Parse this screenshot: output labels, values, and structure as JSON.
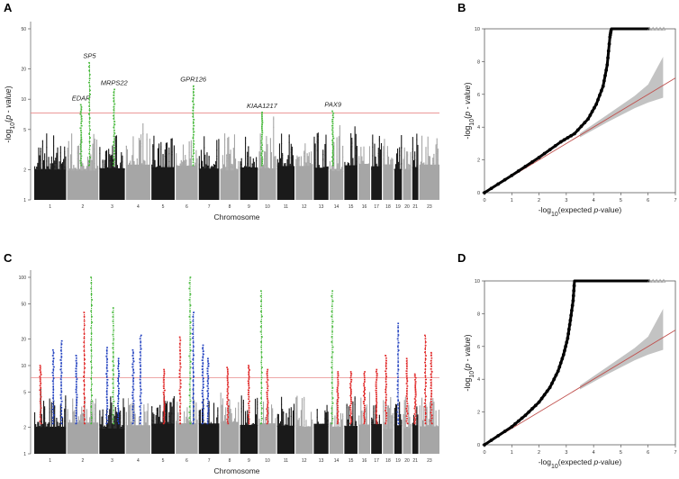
{
  "chart_data": [
    {
      "panel": "A",
      "type": "scatter",
      "subtype": "manhattan",
      "ylabel_tex": [
        "-log",
        "10",
        "(",
        "p",
        " - ",
        "value",
        ")"
      ],
      "xlabel": "Chromosome",
      "y_scale": "log",
      "ylim": [
        1,
        50
      ],
      "yticks": [
        1,
        2,
        5,
        10,
        20,
        50
      ],
      "chromosome_ticks": [
        "1",
        "2",
        "3",
        "4",
        "5",
        "6",
        "7",
        "8",
        "9",
        "10",
        "11",
        "12",
        "13",
        "14",
        "15",
        "16",
        "17",
        "18",
        "19",
        "20",
        "21",
        "23"
      ],
      "chromosome_sizes": [
        248,
        242,
        198,
        190,
        181,
        171,
        159,
        145,
        138,
        134,
        135,
        133,
        114,
        107,
        102,
        90,
        83,
        80,
        59,
        64,
        47,
        156
      ],
      "significance_threshold": 7.3,
      "hits": [
        {
          "gene": "EDAR",
          "chr": 2,
          "pos": 0.45,
          "peak": 8.8
        },
        {
          "gene": "SP5",
          "chr": 2,
          "pos": 0.72,
          "peak": 23
        },
        {
          "gene": "MRPS22",
          "chr": 3,
          "pos": 0.58,
          "peak": 12.5
        },
        {
          "gene": "GPR126",
          "chr": 6,
          "pos": 0.8,
          "peak": 13.5
        },
        {
          "gene": "KIAA1217",
          "chr": 10,
          "pos": 0.18,
          "peak": 7.4
        },
        {
          "gene": "PAX9",
          "chr": 14,
          "pos": 0.25,
          "peak": 7.6
        }
      ]
    },
    {
      "panel": "B",
      "type": "scatter",
      "subtype": "qq",
      "ylabel_tex": [
        "-log",
        "10",
        "(",
        "p",
        " - ",
        "value",
        ")"
      ],
      "xlabel_tex": [
        "-log",
        "10",
        "(expected ",
        "p",
        "-value)"
      ],
      "xlim": [
        0,
        7
      ],
      "ylim": [
        0,
        10
      ],
      "xticks": [
        0,
        1,
        2,
        3,
        4,
        5,
        6,
        7
      ],
      "yticks": [
        0,
        2,
        4,
        6,
        8,
        10
      ],
      "observed_curve": [
        [
          0,
          0
        ],
        [
          1,
          1.05
        ],
        [
          2,
          2.15
        ],
        [
          2.8,
          3.1
        ],
        [
          3.3,
          3.6
        ],
        [
          3.8,
          4.5
        ],
        [
          4.1,
          5.4
        ],
        [
          4.35,
          6.5
        ],
        [
          4.5,
          7.8
        ],
        [
          4.6,
          9.5
        ],
        [
          4.65,
          10
        ]
      ],
      "capped_points_x": [
        4.65,
        6.55
      ],
      "capped_value": 10,
      "expected_line": [
        [
          0,
          0
        ],
        [
          7,
          7
        ]
      ],
      "confidence_band_upper": [
        [
          3.5,
          3.62
        ],
        [
          4.5,
          4.75
        ],
        [
          5.5,
          5.9
        ],
        [
          6,
          6.6
        ],
        [
          6.55,
          8.3
        ]
      ],
      "confidence_band_lower": [
        [
          3.5,
          3.38
        ],
        [
          4.5,
          4.3
        ],
        [
          5.5,
          5.15
        ],
        [
          6,
          5.5
        ],
        [
          6.55,
          5.8
        ]
      ]
    },
    {
      "panel": "C",
      "type": "scatter",
      "subtype": "manhattan",
      "xlabel": "Chromosome",
      "y_scale": "log",
      "ylim": [
        1,
        100
      ],
      "yticks": [
        1,
        2,
        5,
        10,
        20,
        50,
        100
      ],
      "chromosome_ticks": [
        "1",
        "2",
        "3",
        "4",
        "5",
        "6",
        "7",
        "8",
        "9",
        "10",
        "11",
        "12",
        "13",
        "14",
        "15",
        "16",
        "17",
        "18",
        "19",
        "20",
        "21",
        "23"
      ],
      "significance_threshold": 7.3,
      "hits": [
        {
          "chr": 1,
          "pos": 0.2,
          "peak": 10,
          "color": "red"
        },
        {
          "chr": 1,
          "pos": 0.6,
          "peak": 15,
          "color": "blue"
        },
        {
          "chr": 1,
          "pos": 0.85,
          "peak": 19,
          "color": "blue"
        },
        {
          "chr": 2,
          "pos": 0.3,
          "peak": 13,
          "color": "blue"
        },
        {
          "chr": 2,
          "pos": 0.55,
          "peak": 40,
          "color": "red"
        },
        {
          "chr": 2,
          "pos": 0.78,
          "peak": 100,
          "color": "green"
        },
        {
          "chr": 3,
          "pos": 0.3,
          "peak": 16,
          "color": "blue"
        },
        {
          "chr": 3,
          "pos": 0.55,
          "peak": 45,
          "color": "green"
        },
        {
          "chr": 3,
          "pos": 0.75,
          "peak": 12,
          "color": "blue"
        },
        {
          "chr": 4,
          "pos": 0.3,
          "peak": 15,
          "color": "blue"
        },
        {
          "chr": 4,
          "pos": 0.6,
          "peak": 22,
          "color": "blue"
        },
        {
          "chr": 5,
          "pos": 0.55,
          "peak": 9,
          "color": "red"
        },
        {
          "chr": 6,
          "pos": 0.2,
          "peak": 21,
          "color": "red"
        },
        {
          "chr": 6,
          "pos": 0.65,
          "peak": 100,
          "color": "green"
        },
        {
          "chr": 6,
          "pos": 0.8,
          "peak": 40,
          "color": "blue"
        },
        {
          "chr": 7,
          "pos": 0.2,
          "peak": 17,
          "color": "blue"
        },
        {
          "chr": 7,
          "pos": 0.45,
          "peak": 12,
          "color": "blue"
        },
        {
          "chr": 8,
          "pos": 0.4,
          "peak": 9.5,
          "color": "red"
        },
        {
          "chr": 9,
          "pos": 0.5,
          "peak": 10,
          "color": "red"
        },
        {
          "chr": 10,
          "pos": 0.15,
          "peak": 70,
          "color": "green"
        },
        {
          "chr": 10,
          "pos": 0.5,
          "peak": 9,
          "color": "red"
        },
        {
          "chr": 14,
          "pos": 0.2,
          "peak": 70,
          "color": "green"
        },
        {
          "chr": 14,
          "pos": 0.6,
          "peak": 8.5,
          "color": "red"
        },
        {
          "chr": 15,
          "pos": 0.5,
          "peak": 8.5,
          "color": "red"
        },
        {
          "chr": 16,
          "pos": 0.5,
          "peak": 8.5,
          "color": "red"
        },
        {
          "chr": 17,
          "pos": 0.5,
          "peak": 9,
          "color": "red"
        },
        {
          "chr": 18,
          "pos": 0.3,
          "peak": 13,
          "color": "red"
        },
        {
          "chr": 19,
          "pos": 0.5,
          "peak": 30,
          "color": "blue"
        },
        {
          "chr": 20,
          "pos": 0.5,
          "peak": 12,
          "color": "red"
        },
        {
          "chr": 21,
          "pos": 0.5,
          "peak": 8,
          "color": "red"
        },
        {
          "chr": 23,
          "pos": 0.3,
          "peak": 22,
          "color": "red"
        },
        {
          "chr": 23,
          "pos": 0.6,
          "peak": 14,
          "color": "red"
        }
      ]
    },
    {
      "panel": "D",
      "type": "scatter",
      "subtype": "qq",
      "ylabel_tex": [
        "-log",
        "10",
        "(",
        "p",
        " - ",
        "value",
        ")"
      ],
      "xlabel_tex": [
        "-log",
        "10",
        "(expected ",
        "p",
        "-value)"
      ],
      "xlim": [
        0,
        7
      ],
      "ylim": [
        0,
        10
      ],
      "xticks": [
        0,
        1,
        2,
        3,
        4,
        5,
        6,
        7
      ],
      "yticks": [
        0,
        2,
        4,
        6,
        8,
        10
      ],
      "observed_curve": [
        [
          0,
          0
        ],
        [
          1,
          1.1
        ],
        [
          1.5,
          1.8
        ],
        [
          2,
          2.6
        ],
        [
          2.4,
          3.5
        ],
        [
          2.7,
          4.5
        ],
        [
          2.9,
          5.5
        ],
        [
          3.05,
          6.5
        ],
        [
          3.15,
          7.6
        ],
        [
          3.25,
          8.8
        ],
        [
          3.3,
          10
        ]
      ],
      "capped_points_x": [
        3.3,
        6.55
      ],
      "capped_value": 10,
      "expected_line": [
        [
          0,
          0
        ],
        [
          7,
          7
        ]
      ],
      "confidence_band_upper": [
        [
          3.5,
          3.62
        ],
        [
          4.5,
          4.75
        ],
        [
          5.5,
          5.9
        ],
        [
          6,
          6.6
        ],
        [
          6.55,
          8.3
        ]
      ],
      "confidence_band_lower": [
        [
          3.5,
          3.38
        ],
        [
          4.5,
          4.3
        ],
        [
          5.5,
          5.15
        ],
        [
          6,
          5.5
        ],
        [
          6.55,
          5.8
        ]
      ]
    }
  ],
  "panel_labels": [
    "A",
    "B",
    "C",
    "D"
  ],
  "colors": {
    "chrom_dark": "#1a1a1a",
    "chrom_light": "#a6a6a6",
    "hit_green": "#46b83a",
    "hit_red": "#e02424",
    "hit_blue": "#1f3fbf",
    "threshold": "#e88a8a",
    "qq_points": "#000000",
    "qq_line": "#c0504d",
    "qq_band": "#b8b8b8",
    "capped_marker": "#999999"
  }
}
